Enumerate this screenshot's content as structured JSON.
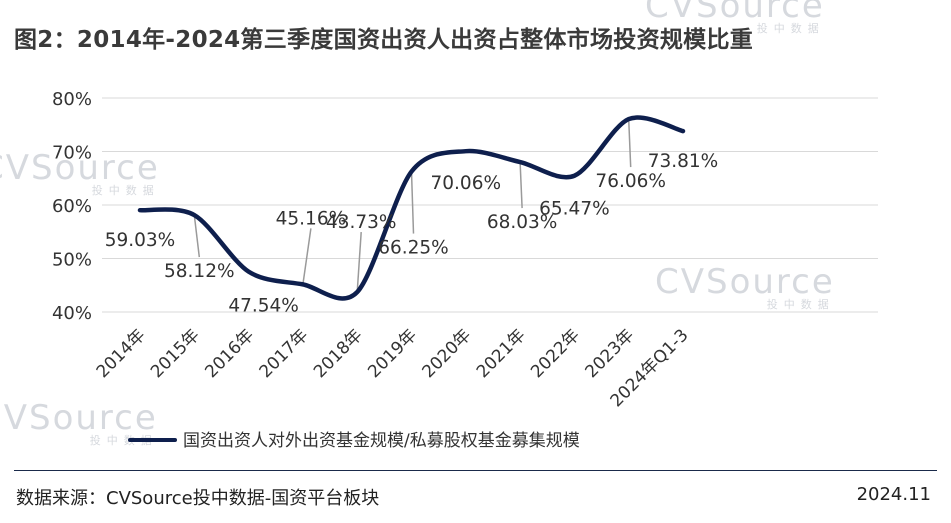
{
  "title": "图2：2014年-2024第三季度国资出资人出资占整体市场投资规模比重",
  "source": "数据来源：CVSource投中数据-国资平台板块",
  "date": "2024.11",
  "watermark": {
    "text": "CVSource",
    "sub": "投中数据"
  },
  "colors": {
    "line": "#0e1f4d",
    "grid": "#d9d9d9",
    "text": "#333333",
    "leader": "#9a9a9a"
  },
  "chart_data": {
    "type": "line",
    "categories": [
      "2014年",
      "2015年",
      "2016年",
      "2017年",
      "2018年",
      "2019年",
      "2020年",
      "2021年",
      "2022年",
      "2023年",
      "2024年Q1-3"
    ],
    "series": [
      {
        "name": "国资出资人对外出资基金规模/私募股权基金募集规模",
        "values": [
          59.03,
          58.12,
          47.54,
          45.16,
          43.73,
          66.25,
          70.06,
          68.03,
          65.47,
          76.06,
          73.81
        ],
        "labels": [
          "59.03%",
          "58.12%",
          "47.54%",
          "45.16%",
          "43.73%",
          "66.25%",
          "70.06%",
          "68.03%",
          "65.47%",
          "76.06%",
          "73.81%"
        ]
      }
    ],
    "ylim": [
      40,
      80
    ],
    "yticks": [
      40,
      50,
      60,
      70,
      80
    ],
    "ytick_labels": [
      "40%",
      "50%",
      "60%",
      "70%",
      "80%"
    ],
    "grid": true,
    "legend_position": "bottom"
  }
}
